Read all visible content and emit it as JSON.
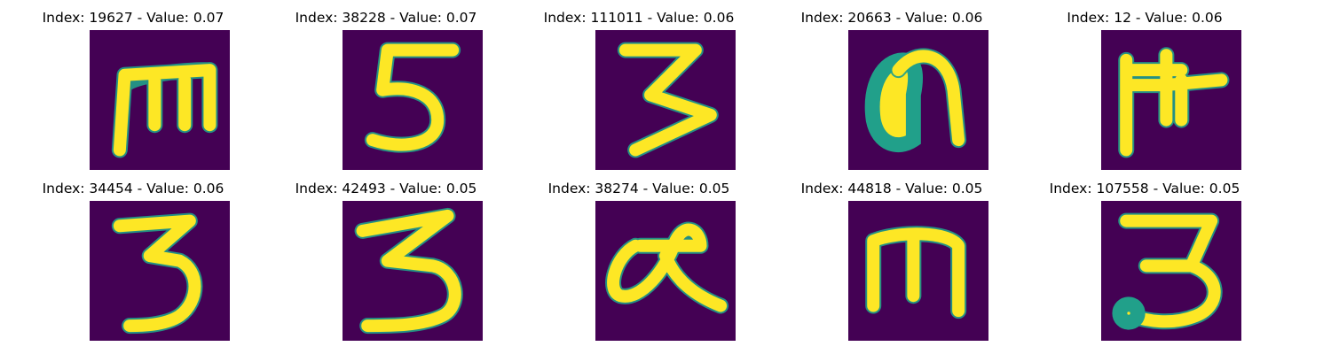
{
  "colors": {
    "background": "#440154",
    "stroke": "#fde725",
    "edge": "#21a08a"
  },
  "samples": [
    {
      "title": "Index: 19627 - Value: 0.07",
      "index": 19627,
      "value": 0.07,
      "glyph": "m-shape"
    },
    {
      "title": "Index: 38228 - Value: 0.07",
      "index": 38228,
      "value": 0.07,
      "glyph": "digit-5"
    },
    {
      "title": "Index: 111011 - Value: 0.06",
      "index": 111011,
      "value": 0.06,
      "glyph": "digit-3-angular"
    },
    {
      "title": "Index: 20663 - Value: 0.06",
      "index": 20663,
      "value": 0.06,
      "glyph": "n-arch"
    },
    {
      "title": "Index: 12 - Value: 0.06",
      "index": 12,
      "value": 0.06,
      "glyph": "branched-glyph"
    },
    {
      "title": "Index: 34454 - Value: 0.06",
      "index": 34454,
      "value": 0.06,
      "glyph": "digit-3"
    },
    {
      "title": "Index: 42493 - Value: 0.05",
      "index": 42493,
      "value": 0.05,
      "glyph": "digit-3"
    },
    {
      "title": "Index: 38274 - Value: 0.05",
      "index": 38274,
      "value": 0.05,
      "glyph": "alpha-glyph"
    },
    {
      "title": "Index: 44818 - Value: 0.05",
      "index": 44818,
      "value": 0.05,
      "glyph": "m-shape"
    },
    {
      "title": "Index: 107558 - Value: 0.05",
      "index": 107558,
      "value": 0.05,
      "glyph": "digit-3"
    }
  ]
}
